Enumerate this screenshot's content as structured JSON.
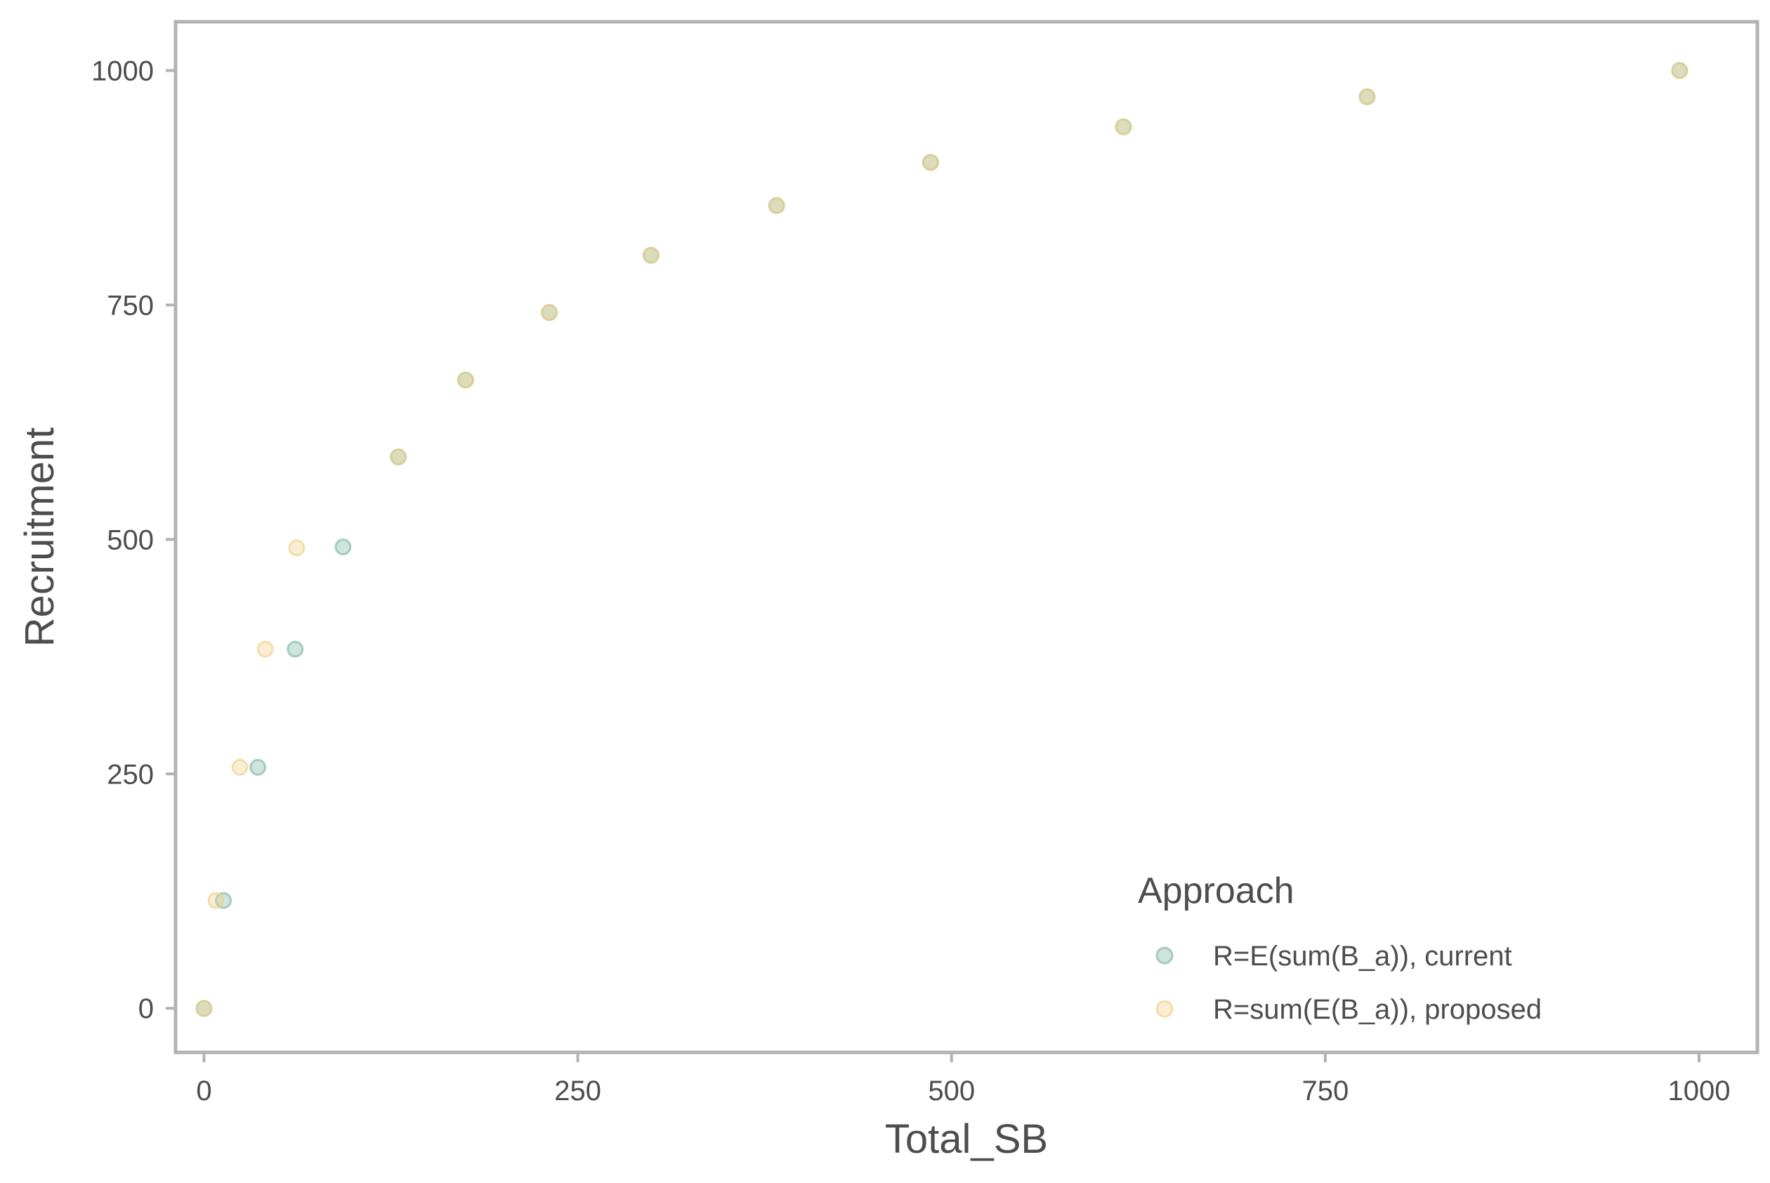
{
  "chart_data": {
    "type": "scatter",
    "title": "",
    "xlabel": "Total_SB",
    "ylabel": "Recruitment",
    "xlim": [
      -19,
      1039
    ],
    "ylim": [
      -47,
      1052
    ],
    "x_ticks": [
      0,
      250,
      500,
      750,
      1000
    ],
    "y_ticks": [
      0,
      250,
      500,
      750,
      1000
    ],
    "grid": false,
    "legend": {
      "title": "Approach",
      "position": "bottom-right"
    },
    "series": [
      {
        "name": "R=E(sum(B_a)), current",
        "color": "#7fb8a4",
        "points": [
          {
            "x": 0,
            "y": 0
          },
          {
            "x": 13,
            "y": 115
          },
          {
            "x": 36,
            "y": 257
          },
          {
            "x": 61,
            "y": 383
          },
          {
            "x": 93,
            "y": 492
          },
          {
            "x": 130,
            "y": 588
          },
          {
            "x": 175,
            "y": 670
          },
          {
            "x": 231,
            "y": 742
          },
          {
            "x": 299,
            "y": 803
          },
          {
            "x": 383,
            "y": 856
          },
          {
            "x": 486,
            "y": 902
          },
          {
            "x": 615,
            "y": 940
          },
          {
            "x": 778,
            "y": 972
          },
          {
            "x": 987,
            "y": 1000
          }
        ]
      },
      {
        "name": "R=sum(E(B_a)), proposed",
        "color": "#f0cf8a",
        "points": [
          {
            "x": 0,
            "y": 0
          },
          {
            "x": 8,
            "y": 115
          },
          {
            "x": 24,
            "y": 257
          },
          {
            "x": 41,
            "y": 383
          },
          {
            "x": 62,
            "y": 491
          },
          {
            "x": 130,
            "y": 588
          },
          {
            "x": 175,
            "y": 670
          },
          {
            "x": 231,
            "y": 742
          },
          {
            "x": 299,
            "y": 803
          },
          {
            "x": 383,
            "y": 856
          },
          {
            "x": 486,
            "y": 902
          },
          {
            "x": 615,
            "y": 940
          },
          {
            "x": 778,
            "y": 972
          },
          {
            "x": 987,
            "y": 1000
          }
        ]
      }
    ]
  }
}
